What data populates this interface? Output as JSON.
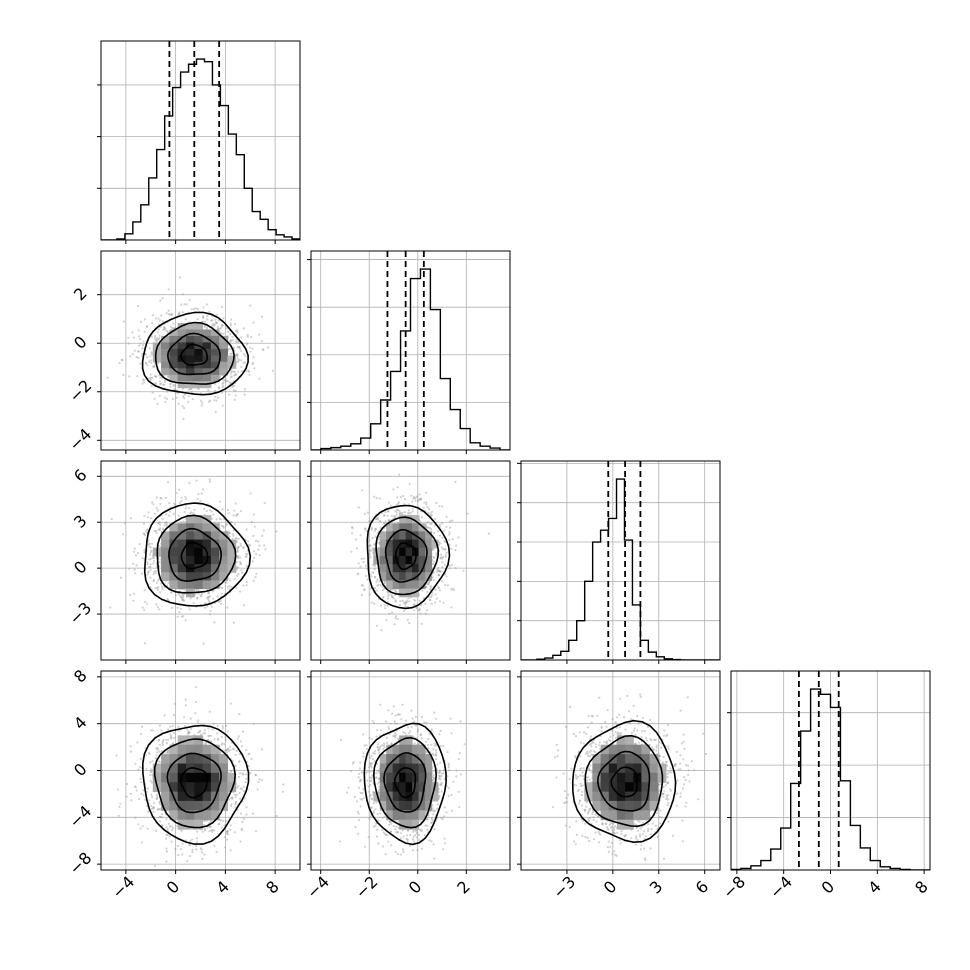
{
  "chart_data": {
    "type": "corner",
    "description_of_layout": "4x4 lower-triangular grid: 1D histograms on the diagonal, 2D density (points + 2D histogram + contours) below",
    "parameters": [
      {
        "index": 0,
        "median": 1.5,
        "quantiles": [
          -0.5,
          1.5,
          3.5
        ],
        "xlim": [
          -6,
          10
        ],
        "xticks": [
          -4,
          0,
          4,
          8
        ],
        "xtick_labels": [
          "−4",
          "0",
          "4",
          "8"
        ],
        "histogram": {
          "bin_start": -6.0,
          "bin_width": 0.64,
          "counts": [
            0,
            0,
            2,
            12,
            35,
            68,
            120,
            175,
            240,
            295,
            325,
            340,
            350,
            345,
            300,
            260,
            205,
            165,
            100,
            55,
            40,
            20,
            10,
            6,
            2
          ]
        }
      },
      {
        "index": 1,
        "median": -0.5,
        "quantiles": [
          -1.25,
          -0.5,
          0.25
        ],
        "xlim": [
          -4.4,
          3.8
        ],
        "xticks": [
          -4,
          -2,
          0,
          2
        ],
        "xtick_labels": [
          "−4",
          "−2",
          "0",
          "2"
        ],
        "ylim": [
          -4.4,
          3.8
        ],
        "yticks": [
          -4,
          -2,
          0,
          2
        ],
        "ytick_labels": [
          "−4",
          "−2",
          "0",
          "2"
        ],
        "histogram": {
          "bin_start": -4.4,
          "bin_width": 0.41,
          "counts": [
            0,
            3,
            5,
            8,
            13,
            25,
            55,
            105,
            165,
            250,
            360,
            380,
            295,
            150,
            85,
            45,
            15,
            8,
            4,
            0
          ]
        }
      },
      {
        "index": 2,
        "median": 0.8,
        "quantiles": [
          -0.3,
          0.8,
          1.8
        ],
        "xlim": [
          -6,
          7
        ],
        "xticks": [
          -3,
          0,
          3,
          6
        ],
        "xtick_labels": [
          "−3",
          "0",
          "3",
          "6"
        ],
        "ylim": [
          -6,
          7
        ],
        "yticks": [
          -3,
          0,
          3,
          6
        ],
        "ytick_labels": [
          "−3",
          "0",
          "3",
          "6"
        ],
        "histogram": {
          "bin_start": -6.0,
          "bin_width": 0.52,
          "counts": [
            0,
            0,
            2,
            5,
            12,
            22,
            50,
            100,
            200,
            300,
            330,
            360,
            460,
            305,
            140,
            50,
            20,
            8,
            3,
            1,
            0,
            0,
            0,
            0,
            0
          ]
        }
      },
      {
        "index": 3,
        "median": -1.0,
        "quantiles": [
          -2.7,
          -1.0,
          0.7
        ],
        "xlim": [
          -8.5,
          8.5
        ],
        "xticks": [
          -8,
          -4,
          0,
          4,
          8
        ],
        "xtick_labels": [
          "−8",
          "−4",
          "0",
          "4",
          "8"
        ],
        "ylim": [
          -8.5,
          8.5
        ],
        "yticks": [
          -8,
          -4,
          0,
          4,
          8
        ],
        "ytick_labels": [
          "−8",
          "−4",
          "0",
          "4",
          "8"
        ],
        "histogram": {
          "bin_start": -8.5,
          "bin_width": 0.85,
          "counts": [
            1,
            3,
            8,
            18,
            40,
            80,
            165,
            265,
            345,
            335,
            310,
            170,
            85,
            42,
            18,
            6,
            3,
            1,
            0,
            0
          ]
        }
      }
    ],
    "pairs": [
      {
        "x": 0,
        "y": 1,
        "center": [
          1.5,
          -0.5
        ],
        "sigma": [
          2.0,
          0.8
        ]
      },
      {
        "x": 0,
        "y": 2,
        "center": [
          1.5,
          0.8
        ],
        "sigma": [
          2.0,
          1.6
        ]
      },
      {
        "x": 1,
        "y": 2,
        "center": [
          -0.5,
          0.8
        ],
        "sigma": [
          0.8,
          1.6
        ]
      },
      {
        "x": 0,
        "y": 3,
        "center": [
          1.5,
          -1.0
        ],
        "sigma": [
          2.0,
          2.4
        ]
      },
      {
        "x": 1,
        "y": 3,
        "center": [
          -0.5,
          -1.0
        ],
        "sigma": [
          0.8,
          2.4
        ]
      },
      {
        "x": 2,
        "y": 3,
        "center": [
          0.8,
          -1.0
        ],
        "sigma": [
          1.6,
          2.4
        ]
      }
    ],
    "contour_levels_sigma": [
      0.5,
      1.0,
      1.5,
      2.0
    ],
    "grid": true,
    "colors": {
      "line": "#000000",
      "points": "#9a9a9a",
      "grid": "#b0b0b0",
      "density": "#000000"
    }
  }
}
